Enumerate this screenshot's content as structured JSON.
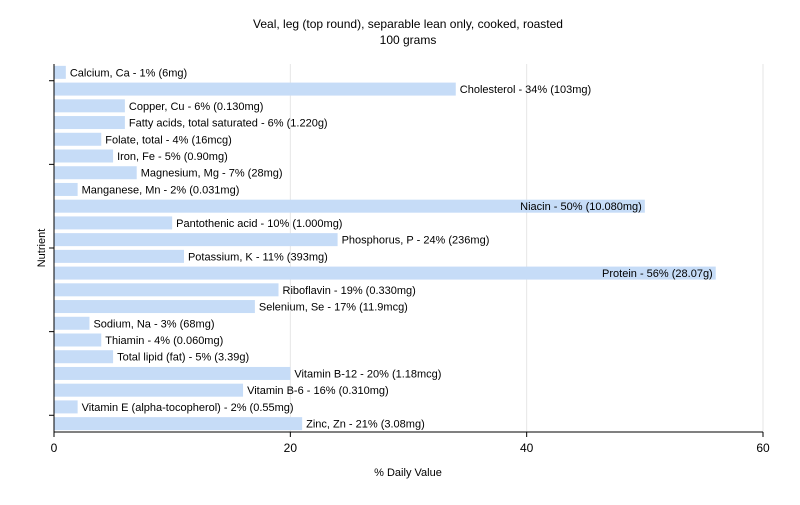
{
  "chart_data": {
    "type": "bar",
    "orientation": "horizontal",
    "title": "Veal, leg (top round), separable lean only, cooked, roasted",
    "subtitle": "100 grams",
    "xlabel": "% Daily Value",
    "ylabel": "Nutrient",
    "xlim": [
      0,
      60
    ],
    "xticks": [
      0,
      20,
      40,
      60
    ],
    "grid": true,
    "bar_color": "#c6dcf7",
    "grid_color": "#e6e6e6",
    "axis_color": "#000000",
    "categories": [
      "Calcium, Ca",
      "Cholesterol",
      "Copper, Cu",
      "Fatty acids, total saturated",
      "Folate, total",
      "Iron, Fe",
      "Magnesium, Mg",
      "Manganese, Mn",
      "Niacin",
      "Pantothenic acid",
      "Phosphorus, P",
      "Potassium, K",
      "Protein",
      "Riboflavin",
      "Selenium, Se",
      "Sodium, Na",
      "Thiamin",
      "Total lipid (fat)",
      "Vitamin B-12",
      "Vitamin B-6",
      "Vitamin E (alpha-tocopherol)",
      "Zinc, Zn"
    ],
    "values": [
      1,
      34,
      6,
      6,
      4,
      5,
      7,
      2,
      50,
      10,
      24,
      11,
      56,
      19,
      17,
      3,
      4,
      5,
      20,
      16,
      2,
      21
    ],
    "labels": [
      "Calcium, Ca - 1% (6mg)",
      "Cholesterol - 34% (103mg)",
      "Copper, Cu - 6% (0.130mg)",
      "Fatty acids, total saturated - 6% (1.220g)",
      "Folate, total - 4% (16mcg)",
      "Iron, Fe - 5% (0.90mg)",
      "Magnesium, Mg - 7% (28mg)",
      "Manganese, Mn - 2% (0.031mg)",
      "Niacin - 50% (10.080mg)",
      "Pantothenic acid - 10% (1.000mg)",
      "Phosphorus, P - 24% (236mg)",
      "Potassium, K - 11% (393mg)",
      "Protein - 56% (28.07g)",
      "Riboflavin - 19% (0.330mg)",
      "Selenium, Se - 17% (11.9mcg)",
      "Sodium, Na - 3% (68mg)",
      "Thiamin - 4% (0.060mg)",
      "Total lipid (fat) - 5% (3.39g)",
      "Vitamin B-12 - 20% (1.18mcg)",
      "Vitamin B-6 - 16% (0.310mg)",
      "Vitamin E (alpha-tocopherol) - 2% (0.55mg)",
      "Zinc, Zn - 21% (3.08mg)"
    ]
  }
}
